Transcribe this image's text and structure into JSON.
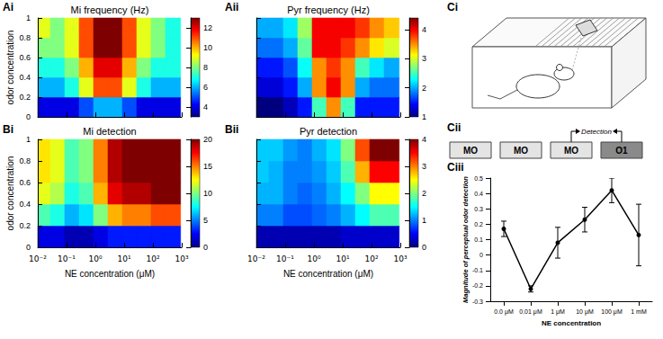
{
  "chart_data": [
    {
      "type": "heatmap",
      "title": "Mi frequency (Hz)",
      "ylabel": "odor concentration",
      "log": "x",
      "x": [
        0.015,
        0.05,
        0.15,
        0.5,
        1.5,
        5,
        15,
        50,
        150,
        500
      ],
      "y": [
        0.1,
        0.3,
        0.5,
        0.7,
        0.9
      ],
      "cells": [
        [
          4,
          4,
          4,
          5,
          6,
          6,
          5,
          4,
          4,
          4
        ],
        [
          6,
          6,
          7,
          9,
          11,
          11,
          9,
          7,
          6,
          6
        ],
        [
          7,
          7,
          8,
          10,
          12,
          12,
          10,
          8,
          7,
          7
        ],
        [
          8,
          8,
          9,
          11,
          13,
          13,
          11,
          9,
          8,
          7
        ],
        [
          9,
          8,
          9,
          11,
          13,
          13,
          11,
          9,
          8,
          7
        ]
      ],
      "xlim": [
        0.01,
        1000
      ],
      "xticks": [
        {
          "value": 0.01,
          "label": "10⁻²"
        },
        {
          "value": 0.1,
          "label": "10⁻¹"
        },
        {
          "value": 1,
          "label": "10⁰"
        },
        {
          "value": 10,
          "label": "10¹"
        },
        {
          "value": 100,
          "label": "10²"
        },
        {
          "value": 1000,
          "label": "10³"
        }
      ],
      "ylim": [
        0,
        1
      ],
      "yticks": [
        0,
        0.2,
        0.4,
        0.6,
        0.8,
        1
      ],
      "colorbar_range": [
        3,
        13
      ],
      "colorbar_ticks": [
        4,
        6,
        8,
        10,
        12
      ],
      "tick_labels": "y"
    },
    {
      "type": "heatmap",
      "title": "Pyr frequency (Hz)",
      "log": "x",
      "x": [
        0.015,
        0.05,
        0.15,
        0.5,
        1.5,
        5,
        15,
        50,
        150,
        500
      ],
      "y": [
        0.1,
        0.3,
        0.5,
        0.7,
        0.9
      ],
      "cells": [
        [
          1,
          1,
          1.2,
          1.5,
          2.5,
          3.5,
          2.5,
          1.5,
          1.5,
          1.5
        ],
        [
          1.3,
          1.3,
          1.5,
          2,
          3.5,
          4,
          3.5,
          2,
          1.8,
          1.8
        ],
        [
          1.5,
          1.5,
          1.7,
          2.3,
          3.5,
          3.8,
          3.5,
          2.5,
          2.2,
          2
        ],
        [
          1.8,
          1.8,
          2,
          2.6,
          4,
          4,
          3.8,
          3.5,
          3.2,
          3
        ],
        [
          2,
          2,
          2.2,
          2.8,
          4,
          4,
          4,
          3.8,
          3.5,
          3.3
        ]
      ],
      "xlim": [
        0.01,
        1000
      ],
      "xticks": [
        {
          "value": 0.01,
          "label": "10⁻²"
        },
        {
          "value": 0.1,
          "label": "10⁻¹"
        },
        {
          "value": 1,
          "label": "10⁰"
        },
        {
          "value": 10,
          "label": "10¹"
        },
        {
          "value": 100,
          "label": "10²"
        },
        {
          "value": 1000,
          "label": "10³"
        }
      ],
      "ylim": [
        0,
        1
      ],
      "yticks": [
        0,
        0.2,
        0.4,
        0.6,
        0.8,
        1
      ],
      "colorbar_range": [
        1,
        4.4
      ],
      "colorbar_ticks": [
        1,
        2,
        3,
        4
      ],
      "tick_labels": false
    },
    {
      "type": "heatmap",
      "title": "Mi detection",
      "xlabel": "NE concentration (μM)",
      "ylabel": "odor concentration",
      "log": "x",
      "x": [
        0.015,
        0.05,
        0.15,
        0.5,
        1.5,
        5,
        15,
        50,
        150,
        500
      ],
      "y": [
        0.1,
        0.3,
        0.5,
        0.7,
        0.9
      ],
      "cells": [
        [
          2,
          2,
          1,
          1,
          2,
          3,
          3,
          3,
          3,
          3
        ],
        [
          9,
          8,
          6,
          7,
          10,
          14,
          15,
          15,
          16,
          16
        ],
        [
          12,
          11,
          8,
          9,
          14,
          18,
          19,
          19,
          20,
          20
        ],
        [
          13,
          12,
          9,
          10,
          15,
          19,
          20,
          20,
          20,
          20
        ],
        [
          13,
          12,
          9,
          10,
          15,
          19,
          20,
          20,
          20,
          20
        ]
      ],
      "xlim": [
        0.01,
        1000
      ],
      "xticks": [
        {
          "value": 0.01,
          "label": "10⁻²"
        },
        {
          "value": 0.1,
          "label": "10⁻¹"
        },
        {
          "value": 1,
          "label": "10⁰"
        },
        {
          "value": 10,
          "label": "10¹"
        },
        {
          "value": 100,
          "label": "10²"
        },
        {
          "value": 1000,
          "label": "10³"
        }
      ],
      "ylim": [
        0,
        1
      ],
      "yticks": [
        0,
        0.2,
        0.4,
        0.6,
        0.8,
        1
      ],
      "colorbar_range": [
        0,
        20
      ],
      "colorbar_ticks": [
        0,
        5,
        10,
        15,
        20
      ],
      "tick_labels": true
    },
    {
      "type": "heatmap",
      "title": "Pyr detection",
      "xlabel": "NE concentration (μM)",
      "log": "x",
      "x": [
        0.015,
        0.05,
        0.15,
        0.5,
        1.5,
        5,
        15,
        50,
        150,
        500
      ],
      "y": [
        0.1,
        0.3,
        0.5,
        0.7,
        0.9
      ],
      "cells": [
        [
          0.2,
          0.2,
          0.2,
          0.2,
          0.2,
          0.2,
          0.3,
          0.3,
          0.3,
          0.3
        ],
        [
          1,
          1,
          0.8,
          0.8,
          0.9,
          1,
          1.2,
          1.5,
          1.8,
          1.8
        ],
        [
          1.2,
          1.2,
          1,
          0.9,
          1,
          1.2,
          1.5,
          2,
          2.5,
          2.5
        ],
        [
          1.3,
          1.2,
          1,
          1,
          1.1,
          1.3,
          1.8,
          2.8,
          3.5,
          3.5
        ],
        [
          1.3,
          1.3,
          1.1,
          1,
          1.2,
          1.4,
          2,
          3.2,
          4,
          4
        ]
      ],
      "xlim": [
        0.01,
        1000
      ],
      "xticks": [
        {
          "value": 0.01,
          "label": "10⁻²"
        },
        {
          "value": 0.1,
          "label": "10⁻¹"
        },
        {
          "value": 1,
          "label": "10⁰"
        },
        {
          "value": 10,
          "label": "10¹"
        },
        {
          "value": 100,
          "label": "10²"
        },
        {
          "value": 1000,
          "label": "10³"
        }
      ],
      "ylim": [
        0,
        1
      ],
      "yticks": [
        0,
        0.2,
        0.4,
        0.6,
        0.8,
        1
      ],
      "colorbar_range": [
        0,
        4
      ],
      "colorbar_ticks": [
        0,
        1,
        2,
        3,
        4
      ],
      "tick_labels": "x"
    },
    {
      "type": "line",
      "xlabel": "NE concentration",
      "ylabel": "Magnitude of perceptual odor detection",
      "categories": [
        "0.0 μM",
        "0.01 μM",
        "1 μM",
        "10 μM",
        "100 μM",
        "1 mM"
      ],
      "values": [
        0.17,
        -0.22,
        0.08,
        0.23,
        0.42,
        0.13
      ],
      "errors": [
        0.05,
        0.02,
        0.1,
        0.08,
        0.08,
        0.2
      ],
      "ylim": [
        -0.3,
        0.5
      ],
      "yticks": [
        -0.3,
        -0.2,
        -0.1,
        0,
        0.1,
        0.2,
        0.3,
        0.4,
        0.5
      ],
      "color": "#000000",
      "marker": "circle"
    }
  ],
  "panel_labels": [
    "Ai",
    "Aii",
    "Bi",
    "Bii",
    "Ci",
    "Cii",
    "Ciii"
  ],
  "diagram": {
    "boxes": [
      "MO",
      "MO",
      "MO",
      "O1"
    ],
    "arrow_label": "Detection"
  }
}
